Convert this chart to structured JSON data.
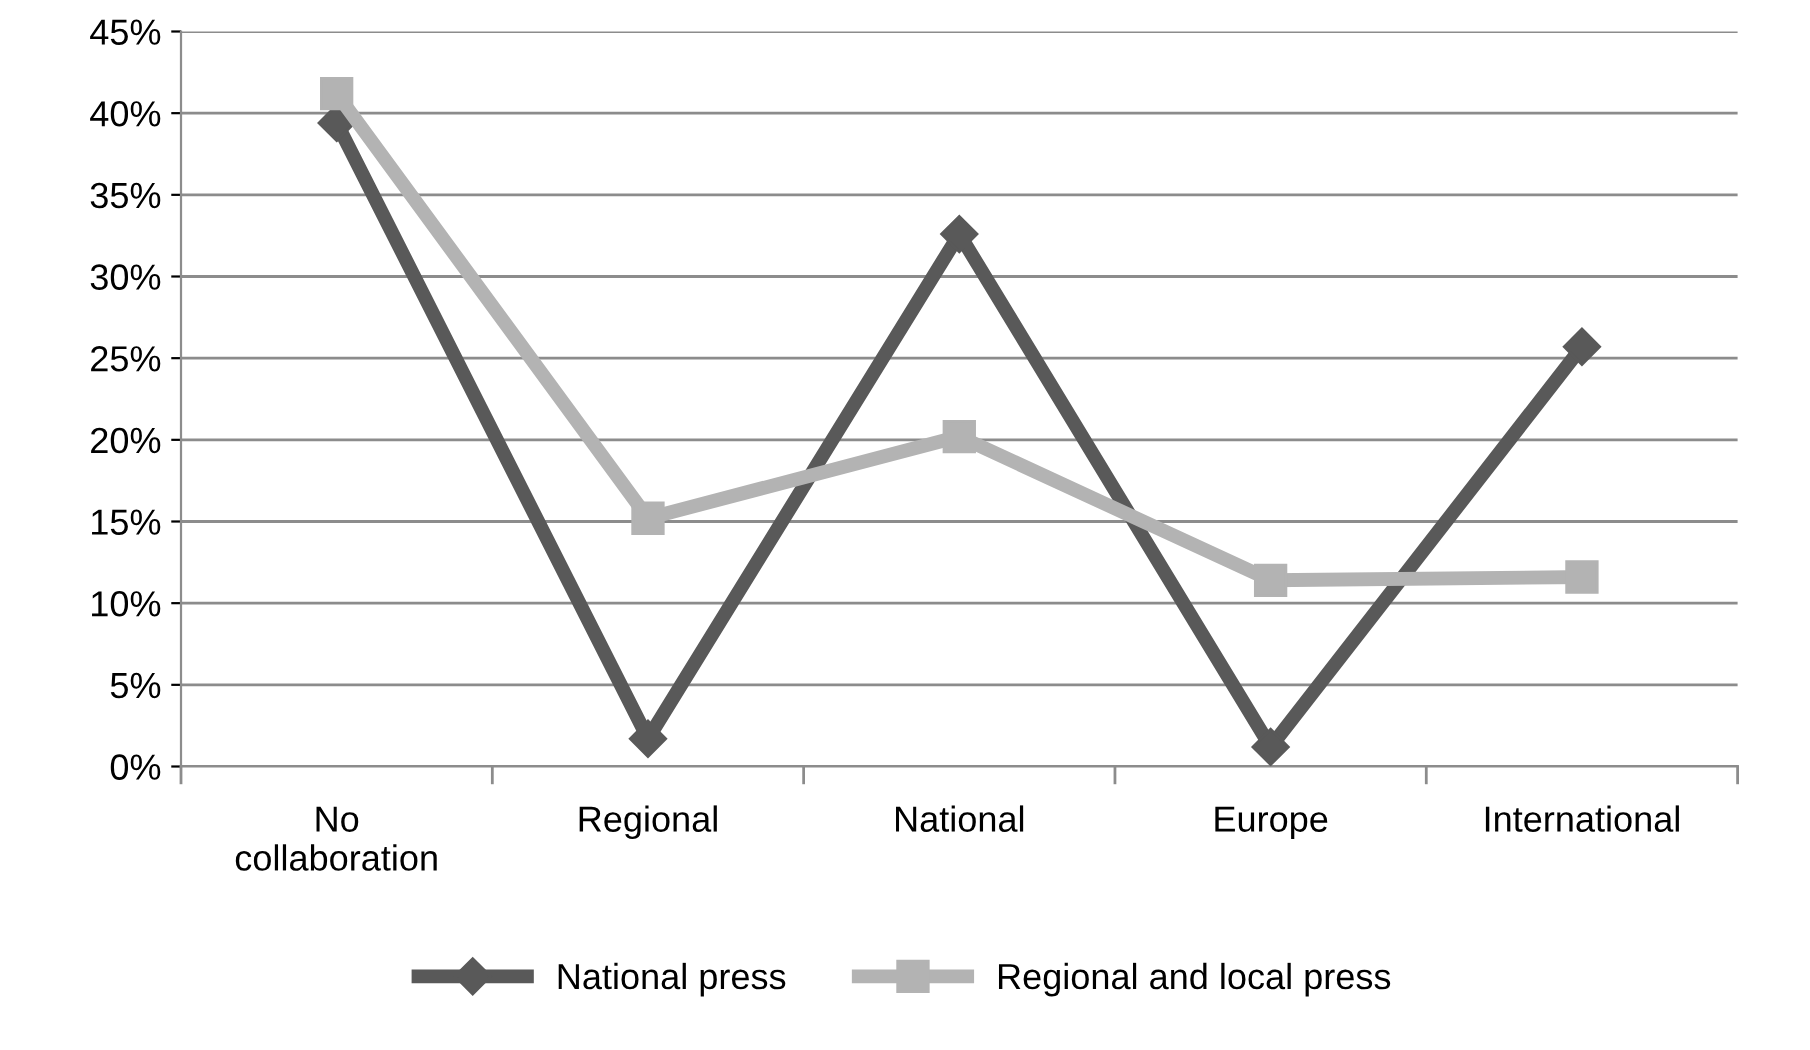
{
  "chart_data": {
    "type": "line",
    "categories": [
      "No\ncollaboration",
      "Regional",
      "National",
      "Europe",
      "International"
    ],
    "series": [
      {
        "name": "National press",
        "color": "#595959",
        "marker": "diamond",
        "values": [
          39.4,
          1.7,
          32.6,
          1.2,
          25.7
        ]
      },
      {
        "name": "Regional and local press",
        "color": "#b3b3b3",
        "marker": "square",
        "values": [
          41.2,
          15.2,
          20.2,
          11.4,
          11.6
        ]
      }
    ],
    "ylim": [
      0,
      45
    ],
    "yticks": [
      {
        "value": 0,
        "label": "0%"
      },
      {
        "value": 5,
        "label": "5%"
      },
      {
        "value": 10,
        "label": "10%"
      },
      {
        "value": 15,
        "label": "15%"
      },
      {
        "value": 20,
        "label": "20%"
      },
      {
        "value": 25,
        "label": "25%"
      },
      {
        "value": 30,
        "label": "30%"
      },
      {
        "value": 35,
        "label": "35%"
      },
      {
        "value": 40,
        "label": "40%"
      },
      {
        "value": 45,
        "label": "45%"
      }
    ],
    "grid": "y",
    "legend": "bottom",
    "line_style": "solid"
  }
}
